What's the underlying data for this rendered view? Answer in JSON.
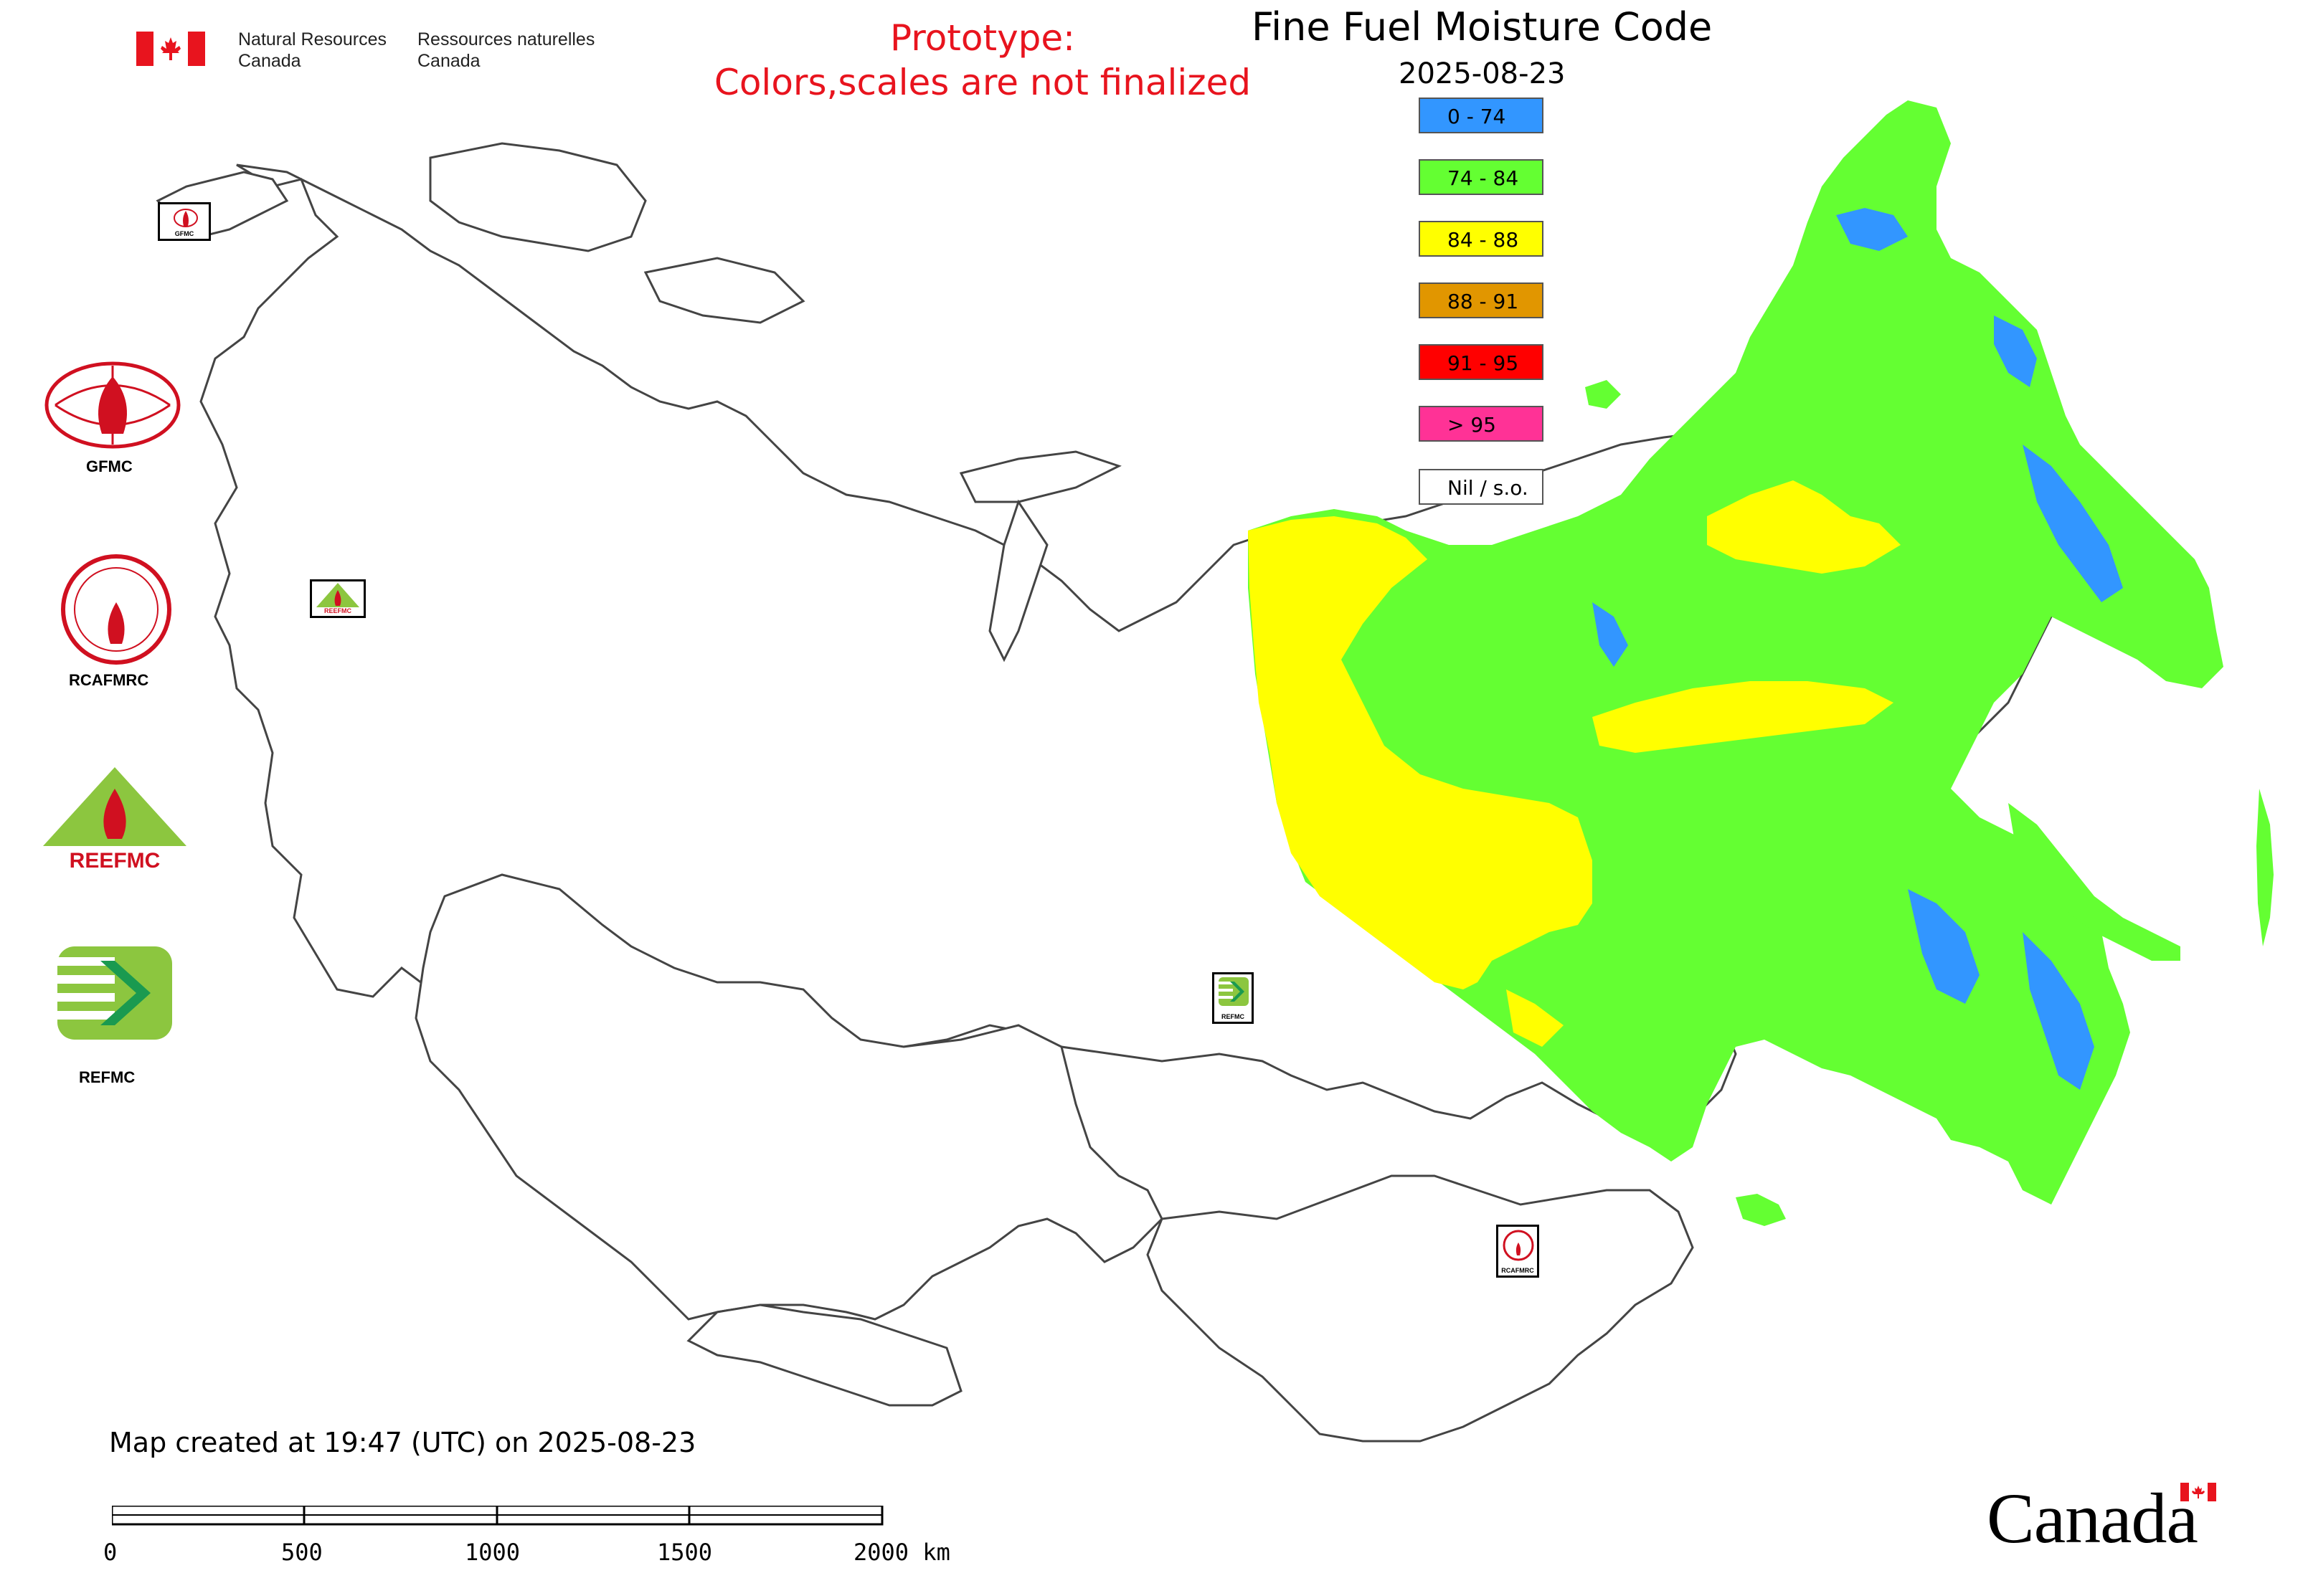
{
  "map": {
    "title": "Fine Fuel Moisture Code",
    "date": "2025-08-23",
    "prototype_notice_line1": "Prototype:",
    "prototype_notice_line2": "Colors,scales are not finalized",
    "created_text": "Map created at 19:47 (UTC) on 2025-08-23"
  },
  "legend": [
    {
      "label": "0 - 74",
      "color": "#3296ff"
    },
    {
      "label": "74 - 84",
      "color": "#64ff32"
    },
    {
      "label": "84 - 88",
      "color": "#ffff00"
    },
    {
      "label": "88 - 91",
      "color": "#e19600"
    },
    {
      "label": "91 - 95",
      "color": "#ff0000"
    },
    {
      "label": "> 95",
      "color": "#ff3296"
    },
    {
      "label": "Nil / s.o.",
      "color": "#ffffff"
    }
  ],
  "header": {
    "nrcan_en_line1": "Natural Resources",
    "nrcan_en_line2": "Canada",
    "nrcan_fr_line1": "Ressources naturelles",
    "nrcan_fr_line2": "Canada"
  },
  "agencies": {
    "gfmc": "GFMC",
    "rcafmrc": "RCAFMRC",
    "reefmc": "REEFMC",
    "refmc": "REFMC"
  },
  "markers": {
    "gfmc": "GFMC",
    "reefmc": "REEFMC",
    "refmc": "REFMC",
    "rcafmrc": "RCAFMRC"
  },
  "scale_bar": {
    "ticks": [
      "0",
      "500",
      "1000",
      "1500",
      "2000 km"
    ]
  },
  "footer": {
    "wordmark": "Canada"
  }
}
